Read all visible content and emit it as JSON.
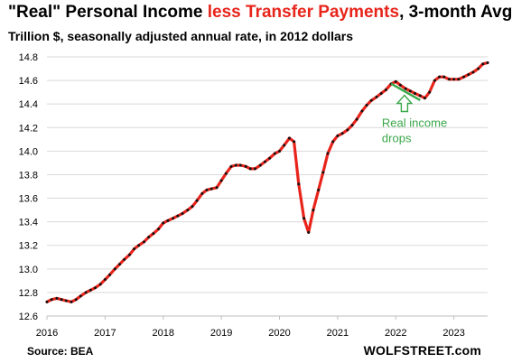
{
  "header": {
    "title_part1": "\"Real\" Personal Income ",
    "title_part2": "less Transfer Payments",
    "title_part3": ", 3-month Avg",
    "subtitle": "Trillion $, seasonally adjusted annual rate, in 2012 dollars"
  },
  "footer": {
    "source": "Source: BEA",
    "brand": "WOLFSTREET.com"
  },
  "colors": {
    "line": "#e8241b",
    "marker": "#111111",
    "annotation": "#3aa84a",
    "grid": "#d9d9d9",
    "title_highlight": "#e8241b"
  },
  "chart_data": {
    "type": "line",
    "title": "\"Real\" Personal Income less Transfer Payments, 3-month Avg",
    "subtitle": "Trillion $, seasonally adjusted annual rate, in 2012 dollars",
    "xlabel": "",
    "ylabel": "",
    "xlim": [
      2016.0,
      2023.58
    ],
    "ylim": [
      12.6,
      14.8
    ],
    "grid": "horizontal",
    "yticks": [
      "12.6",
      "12.8",
      "13.0",
      "13.2",
      "13.4",
      "13.6",
      "13.8",
      "14.0",
      "14.2",
      "14.4",
      "14.6",
      "14.8"
    ],
    "yticks_values": [
      12.6,
      12.8,
      13.0,
      13.2,
      13.4,
      13.6,
      13.8,
      14.0,
      14.2,
      14.4,
      14.6,
      14.8
    ],
    "xticks": [
      "2016",
      "2017",
      "2018",
      "2019",
      "2020",
      "2021",
      "2022",
      "2023"
    ],
    "xticks_values": [
      2016,
      2017,
      2018,
      2019,
      2020,
      2021,
      2022,
      2023
    ],
    "series": [
      {
        "x": [
          2016.0,
          2016.08,
          2016.17,
          2016.25,
          2016.33,
          2016.42,
          2016.5,
          2016.58,
          2016.67,
          2016.75,
          2016.83,
          2016.92,
          2017.0,
          2017.08,
          2017.17,
          2017.25,
          2017.33,
          2017.42,
          2017.5,
          2017.58,
          2017.67,
          2017.75,
          2017.83,
          2017.92,
          2018.0,
          2018.08,
          2018.17,
          2018.25,
          2018.33,
          2018.42,
          2018.5,
          2018.58,
          2018.67,
          2018.75,
          2018.83,
          2018.92,
          2019.0,
          2019.08,
          2019.17,
          2019.25,
          2019.33,
          2019.42,
          2019.5,
          2019.58,
          2019.67,
          2019.75,
          2019.83,
          2019.92,
          2020.0,
          2020.08,
          2020.17,
          2020.25,
          2020.33,
          2020.42,
          2020.5,
          2020.58,
          2020.67,
          2020.75,
          2020.83,
          2020.92,
          2021.0,
          2021.08,
          2021.17,
          2021.25,
          2021.33,
          2021.42,
          2021.5,
          2021.58,
          2021.67,
          2021.75,
          2021.83,
          2021.92,
          2022.0,
          2022.08,
          2022.17,
          2022.25,
          2022.33,
          2022.42,
          2022.5,
          2022.58,
          2022.67,
          2022.75,
          2022.83,
          2022.92,
          2023.0,
          2023.08,
          2023.17,
          2023.25,
          2023.33,
          2023.42,
          2023.5,
          2023.58
        ],
        "y": [
          12.72,
          12.74,
          12.75,
          12.74,
          12.73,
          12.72,
          12.74,
          12.77,
          12.8,
          12.82,
          12.84,
          12.87,
          12.91,
          12.95,
          13.0,
          13.04,
          13.08,
          13.12,
          13.17,
          13.2,
          13.23,
          13.27,
          13.3,
          13.34,
          13.39,
          13.41,
          13.43,
          13.45,
          13.47,
          13.5,
          13.53,
          13.58,
          13.64,
          13.67,
          13.68,
          13.69,
          13.75,
          13.81,
          13.87,
          13.88,
          13.88,
          13.87,
          13.85,
          13.85,
          13.88,
          13.91,
          13.94,
          13.98,
          14.0,
          14.05,
          14.11,
          14.08,
          13.72,
          13.43,
          13.31,
          13.5,
          13.67,
          13.82,
          13.98,
          14.08,
          14.13,
          14.15,
          14.18,
          14.22,
          14.27,
          14.34,
          14.39,
          14.43,
          14.46,
          14.49,
          14.52,
          14.57,
          14.59,
          14.56,
          14.53,
          14.51,
          14.49,
          14.47,
          14.45,
          14.5,
          14.6,
          14.63,
          14.63,
          14.61,
          14.61,
          14.61,
          14.63,
          14.65,
          14.67,
          14.7,
          14.74,
          14.75
        ]
      }
    ],
    "annotation": {
      "text_line1": "Real income",
      "text_line2": "drops",
      "from": [
        2021.92,
        14.58
      ],
      "to": [
        2022.42,
        14.44
      ],
      "arrow_at": [
        2022.15,
        14.505
      ]
    }
  }
}
